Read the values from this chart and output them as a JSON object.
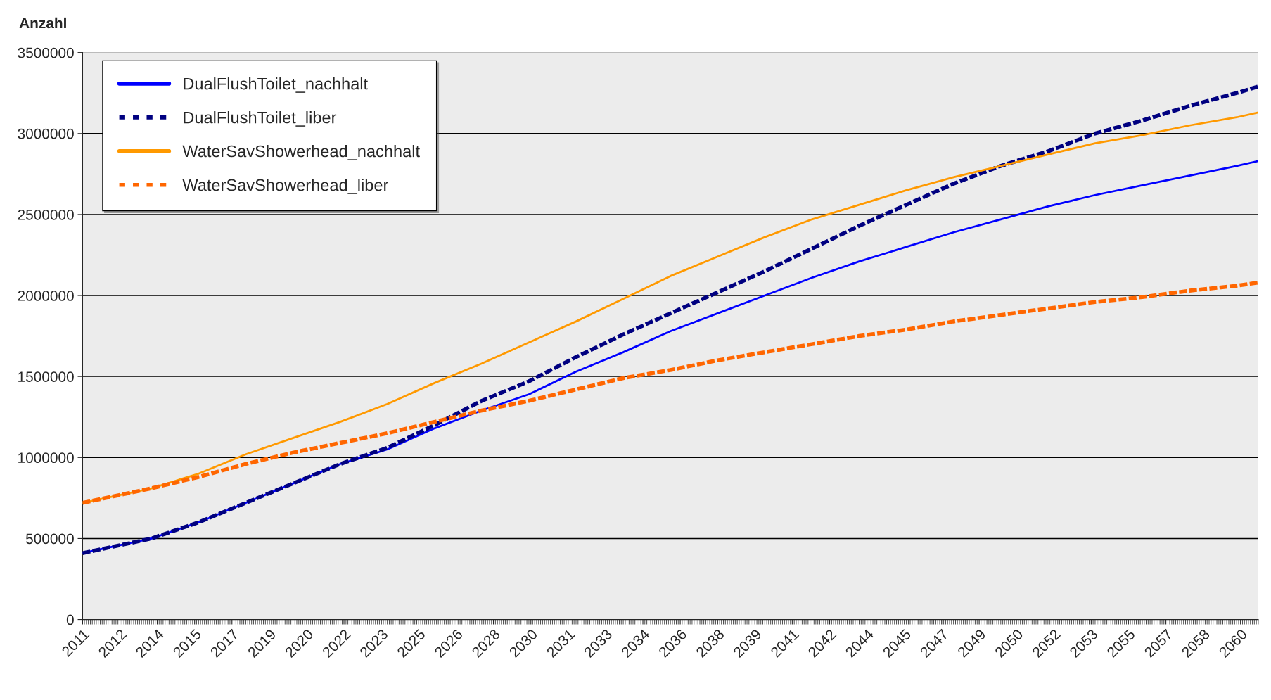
{
  "chart_data": {
    "type": "line",
    "ylabel": "Anzahl",
    "x": [
      "2011-02",
      "2014-01",
      "2016-01",
      "2018-01",
      "2020-01",
      "2022-01",
      "2024-01",
      "2026-01",
      "2028-01",
      "2030-01",
      "2032-01",
      "2034-01",
      "2036-01",
      "2038-01",
      "2040-01",
      "2042-01",
      "2044-01",
      "2046-01",
      "2048-01",
      "2050-01",
      "2052-01",
      "2054-01",
      "2056-01",
      "2058-01",
      "2060-01",
      "2060-12"
    ],
    "series": [
      {
        "name": "DualFlushToilet_nachhalt",
        "color": "#0000ff",
        "line_style": "solid",
        "values": [
          410000,
          500000,
          600000,
          720000,
          840000,
          960000,
          1050000,
          1180000,
          1290000,
          1390000,
          1530000,
          1650000,
          1780000,
          1890000,
          2000000,
          2110000,
          2210000,
          2300000,
          2390000,
          2470000,
          2550000,
          2620000,
          2680000,
          2740000,
          2800000,
          2830000
        ]
      },
      {
        "name": "DualFlushToilet_liber",
        "color": "#000080",
        "line_style": "dashed",
        "values": [
          410000,
          500000,
          600000,
          720000,
          840000,
          960000,
          1060000,
          1200000,
          1350000,
          1470000,
          1620000,
          1760000,
          1890000,
          2020000,
          2150000,
          2290000,
          2430000,
          2560000,
          2690000,
          2800000,
          2890000,
          3000000,
          3080000,
          3170000,
          3250000,
          3290000
        ]
      },
      {
        "name": "WaterSavShowerhead_nachhalt",
        "color": "#ff9900",
        "line_style": "solid",
        "values": [
          720000,
          810000,
          900000,
          1020000,
          1120000,
          1220000,
          1330000,
          1460000,
          1580000,
          1710000,
          1840000,
          1980000,
          2120000,
          2240000,
          2360000,
          2470000,
          2560000,
          2650000,
          2730000,
          2800000,
          2870000,
          2940000,
          2990000,
          3050000,
          3100000,
          3130000
        ]
      },
      {
        "name": "WaterSavShowerhead_liber",
        "color": "#ff6600",
        "line_style": "dashed",
        "values": [
          720000,
          810000,
          880000,
          960000,
          1030000,
          1090000,
          1150000,
          1220000,
          1290000,
          1350000,
          1420000,
          1490000,
          1540000,
          1600000,
          1650000,
          1700000,
          1750000,
          1790000,
          1840000,
          1880000,
          1920000,
          1960000,
          1990000,
          2030000,
          2060000,
          2080000
        ]
      }
    ],
    "xlim": [
      "2011-02",
      "2060-12"
    ],
    "xticks": [
      {
        "value": "2011-02",
        "label": "2011"
      },
      {
        "value": "2012-09",
        "label": "2012"
      },
      {
        "value": "2014-04",
        "label": "2014"
      },
      {
        "value": "2015-11",
        "label": "2015"
      },
      {
        "value": "2017-06",
        "label": "2017"
      },
      {
        "value": "2019-01",
        "label": "2019"
      },
      {
        "value": "2020-08",
        "label": "2020"
      },
      {
        "value": "2022-03",
        "label": "2022"
      },
      {
        "value": "2023-10",
        "label": "2023"
      },
      {
        "value": "2025-05",
        "label": "2025"
      },
      {
        "value": "2026-12",
        "label": "2026"
      },
      {
        "value": "2028-07",
        "label": "2028"
      },
      {
        "value": "2030-02",
        "label": "2030"
      },
      {
        "value": "2031-09",
        "label": "2031"
      },
      {
        "value": "2033-04",
        "label": "2033"
      },
      {
        "value": "2034-11",
        "label": "2034"
      },
      {
        "value": "2036-06",
        "label": "2036"
      },
      {
        "value": "2038-01",
        "label": "2038"
      },
      {
        "value": "2039-08",
        "label": "2039"
      },
      {
        "value": "2041-03",
        "label": "2041"
      },
      {
        "value": "2042-10",
        "label": "2042"
      },
      {
        "value": "2044-05",
        "label": "2044"
      },
      {
        "value": "2045-12",
        "label": "2045"
      },
      {
        "value": "2047-07",
        "label": "2047"
      },
      {
        "value": "2049-02",
        "label": "2049"
      },
      {
        "value": "2050-09",
        "label": "2050"
      },
      {
        "value": "2052-04",
        "label": "2052"
      },
      {
        "value": "2053-11",
        "label": "2053"
      },
      {
        "value": "2055-06",
        "label": "2055"
      },
      {
        "value": "2057-01",
        "label": "2057"
      },
      {
        "value": "2058-08",
        "label": "2058"
      },
      {
        "value": "2060-03",
        "label": "2060"
      }
    ],
    "ylim": [
      0,
      3500000
    ],
    "yticks": [
      0,
      500000,
      1000000,
      1500000,
      2000000,
      2500000,
      3000000,
      3500000
    ],
    "grid": "y",
    "legend": "top left"
  }
}
